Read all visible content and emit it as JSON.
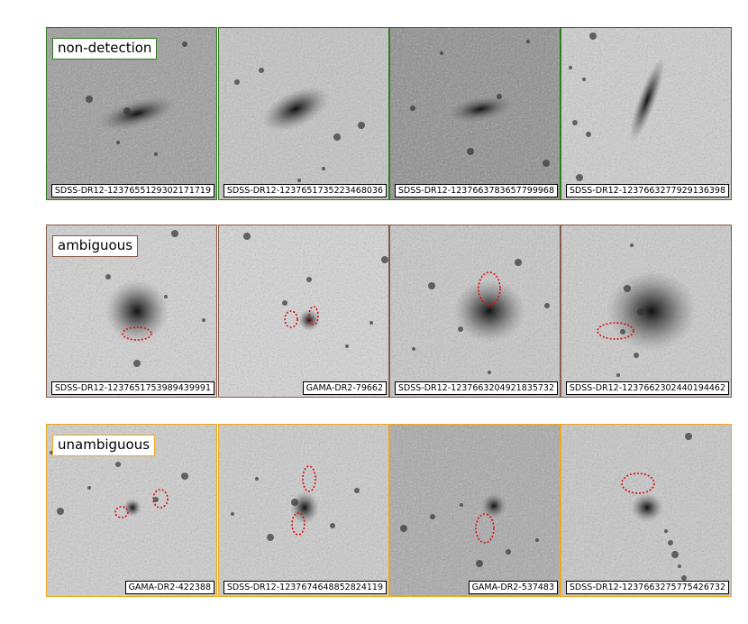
{
  "rows": [
    {
      "label": "non-detection",
      "panels": [
        {
          "id": "SDSS-DR12-1237655129302171719"
        },
        {
          "id": "SDSS-DR12-1237651735223468036"
        },
        {
          "id": "SDSS-DR12-1237663783657799968"
        },
        {
          "id": "SDSS-DR12-1237663277929136398"
        }
      ]
    },
    {
      "label": "ambiguous",
      "panels": [
        {
          "id": "SDSS-DR12-1237651753989439991"
        },
        {
          "id": "GAMA-DR2-79662"
        },
        {
          "id": "SDSS-DR12-1237663204921835732"
        },
        {
          "id": "SDSS-DR12-1237662302440194462"
        }
      ]
    },
    {
      "label": "unambiguous",
      "panels": [
        {
          "id": "GAMA-DR2-422388"
        },
        {
          "id": "SDSS-DR12-1237674648852824119"
        },
        {
          "id": "GAMA-DR2-537483"
        },
        {
          "id": "SDSS-DR12-1237663275775426732"
        }
      ]
    }
  ]
}
